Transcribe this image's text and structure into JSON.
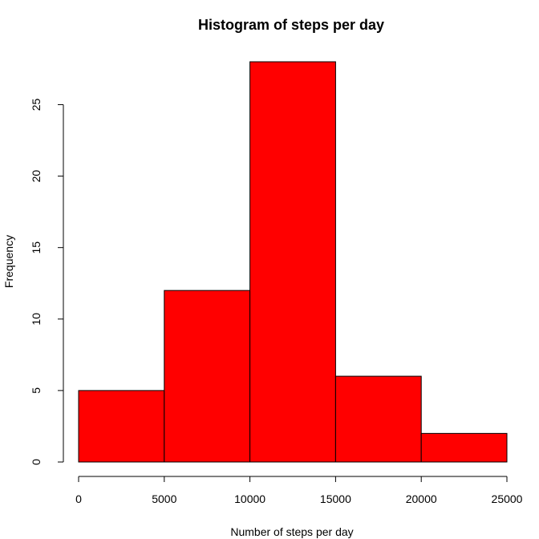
{
  "chart_data": {
    "type": "bar",
    "title": "Histogram of steps per day",
    "xlabel": "Number of steps per day",
    "ylabel": "Frequency",
    "bins": [
      {
        "start": 0,
        "end": 5000,
        "count": 5
      },
      {
        "start": 5000,
        "end": 10000,
        "count": 12
      },
      {
        "start": 10000,
        "end": 15000,
        "count": 28
      },
      {
        "start": 15000,
        "end": 20000,
        "count": 6
      },
      {
        "start": 20000,
        "end": 25000,
        "count": 2
      }
    ],
    "xlim": [
      0,
      25000
    ],
    "ylim": [
      0,
      28
    ],
    "xticks": [
      0,
      5000,
      10000,
      15000,
      20000,
      25000
    ],
    "yticks": [
      0,
      5,
      10,
      15,
      20,
      25
    ],
    "grid": false,
    "legend": "none",
    "bar_color": "#ff0000",
    "edge_color": "#000000"
  }
}
